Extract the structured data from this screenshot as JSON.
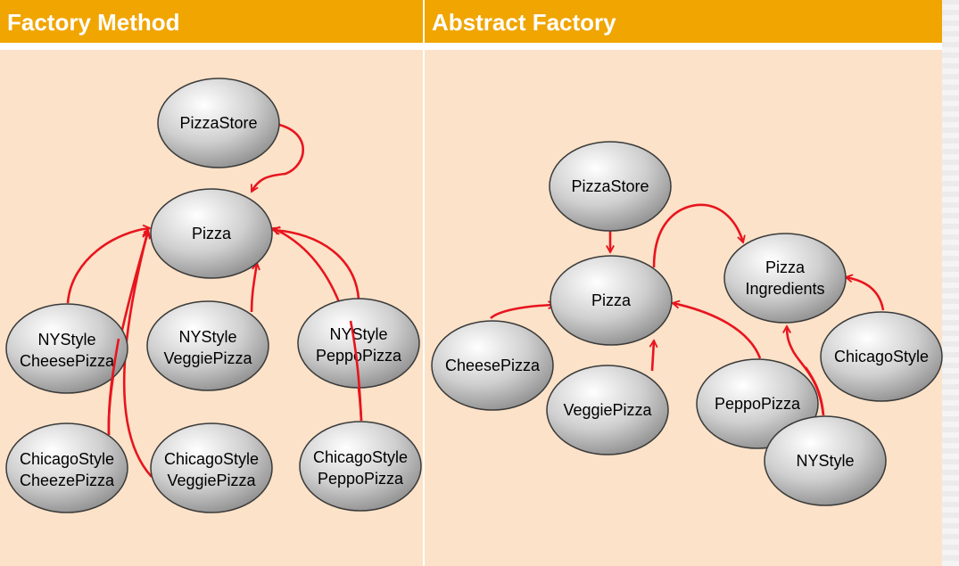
{
  "left_panel": {
    "title": "Factory Method",
    "nodes": {
      "pizzastore": [
        "PizzaStore"
      ],
      "pizza": [
        "Pizza"
      ],
      "ny_cheese": [
        "NYStyle",
        "CheesePizza"
      ],
      "ny_veggie": [
        "NYStyle",
        "VeggiePizza"
      ],
      "ny_peppo": [
        "NYStyle",
        "PeppoPizza"
      ],
      "chicago_cheeze": [
        "ChicagoStyle",
        "CheezePizza"
      ],
      "chicago_veggie": [
        "ChicagoStyle",
        "VeggiePizza"
      ],
      "chicago_peppo": [
        "ChicagoStyle",
        "PeppoPizza"
      ]
    }
  },
  "right_panel": {
    "title": "Abstract Factory",
    "nodes": {
      "pizzastore": [
        "PizzaStore"
      ],
      "pizza": [
        "Pizza"
      ],
      "ingredients": [
        "Pizza",
        "Ingredients"
      ],
      "cheese": [
        "CheesePizza"
      ],
      "veggie": [
        "VeggiePizza"
      ],
      "peppo": [
        "PeppoPizza"
      ],
      "chicagostyle": [
        "ChicagoStyle"
      ],
      "nystyle": [
        "NYStyle"
      ]
    }
  },
  "colors": {
    "header": "#f0a500",
    "panel_background": "#fbe2c8",
    "arrow": "#e8141e",
    "node_fill": "#c8c8c8"
  }
}
